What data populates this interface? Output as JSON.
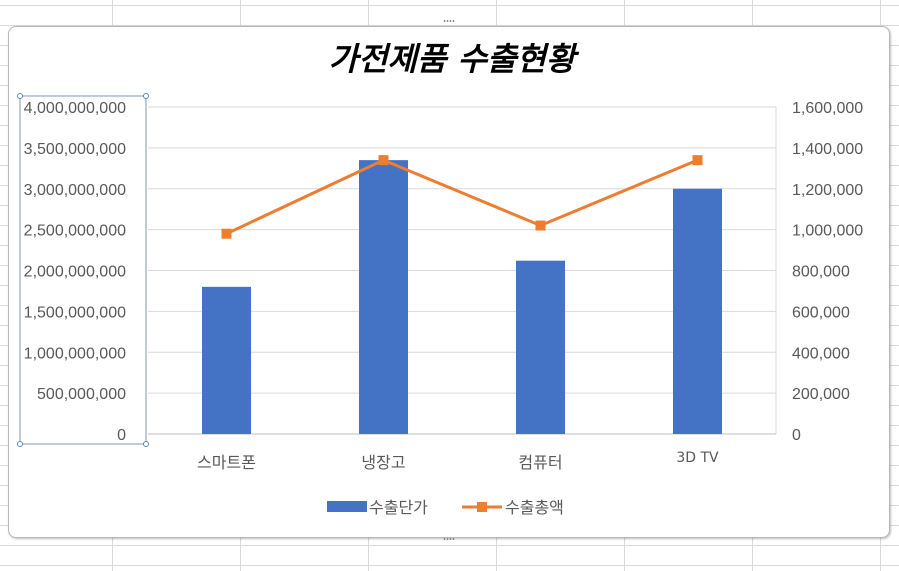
{
  "chart_data": {
    "type": "bar",
    "title": "가전제품 수출현황",
    "categories": [
      "스마트폰",
      "냉장고",
      "컴퓨터",
      "3D TV"
    ],
    "series": [
      {
        "name": "수출단가",
        "type": "bar",
        "axis": "left",
        "color": "#4472C4",
        "values": [
          1800000000,
          3350000000,
          2120000000,
          3000000000
        ]
      },
      {
        "name": "수출총액",
        "type": "line",
        "axis": "right",
        "color": "#ED7D31",
        "marker": "square",
        "values": [
          980000,
          1340000,
          1020000,
          1340000
        ]
      }
    ],
    "y_left": {
      "min": 0,
      "max": 4000000000,
      "ticks": [
        "0",
        "500,000,000",
        "1,000,000,000",
        "1,500,000,000",
        "2,000,000,000",
        "2,500,000,000",
        "3,000,000,000",
        "3,500,000,000",
        "4,000,000,000"
      ]
    },
    "y_right": {
      "min": 0,
      "max": 1600000,
      "ticks": [
        "0",
        "200,000",
        "400,000",
        "600,000",
        "800,000",
        "1,000,000",
        "1,200,000",
        "1,400,000",
        "1,600,000"
      ]
    },
    "grid": true,
    "legend": "bottom"
  }
}
